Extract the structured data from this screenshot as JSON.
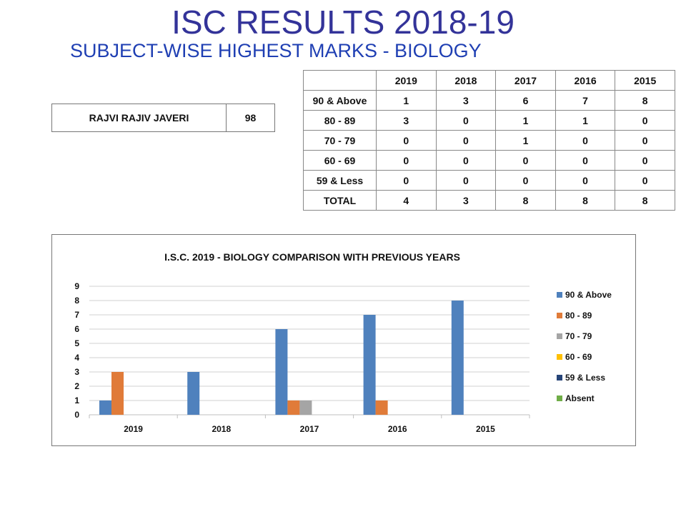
{
  "header": {
    "title": "ISC RESULTS 2018-19",
    "subtitle": "SUBJECT-WISE HIGHEST MARKS - BIOLOGY"
  },
  "topper": {
    "name": "RAJVI RAJIV JAVERI",
    "marks": "98"
  },
  "stats_table": {
    "columns": [
      "2019",
      "2018",
      "2017",
      "2016",
      "2015"
    ],
    "rows": [
      {
        "label": "90 & Above",
        "values": [
          "1",
          "3",
          "6",
          "7",
          "8"
        ]
      },
      {
        "label": "80 - 89",
        "values": [
          "3",
          "0",
          "1",
          "1",
          "0"
        ]
      },
      {
        "label": "70 - 79",
        "values": [
          "0",
          "0",
          "1",
          "0",
          "0"
        ]
      },
      {
        "label": "60 - 69",
        "values": [
          "0",
          "0",
          "0",
          "0",
          "0"
        ]
      },
      {
        "label": "59 & Less",
        "values": [
          "0",
          "0",
          "0",
          "0",
          "0"
        ]
      },
      {
        "label": "TOTAL",
        "values": [
          "4",
          "3",
          "8",
          "8",
          "8"
        ]
      }
    ]
  },
  "chart_data": {
    "type": "bar",
    "title": "I.S.C. 2019 - BIOLOGY COMPARISON WITH PREVIOUS YEARS",
    "categories": [
      "2019",
      "2018",
      "2017",
      "2016",
      "2015"
    ],
    "series": [
      {
        "name": "90 & Above",
        "values": [
          1,
          3,
          6,
          7,
          8
        ],
        "color": "#4f81bd"
      },
      {
        "name": "80 - 89",
        "values": [
          3,
          0,
          1,
          1,
          0
        ],
        "color": "#e07b39"
      },
      {
        "name": "70 - 79",
        "values": [
          0,
          0,
          1,
          0,
          0
        ],
        "color": "#a5a5a5"
      },
      {
        "name": "60 - 69",
        "values": [
          0,
          0,
          0,
          0,
          0
        ],
        "color": "#ffc000"
      },
      {
        "name": "59 & Less",
        "values": [
          0,
          0,
          0,
          0,
          0
        ],
        "color": "#264478"
      },
      {
        "name": "Absent",
        "values": [
          0,
          0,
          0,
          0,
          0
        ],
        "color": "#70ad47"
      }
    ],
    "ylim": [
      0,
      9
    ],
    "yticks": [
      0,
      1,
      2,
      3,
      4,
      5,
      6,
      7,
      8,
      9
    ],
    "grid": true,
    "legend": "right"
  }
}
